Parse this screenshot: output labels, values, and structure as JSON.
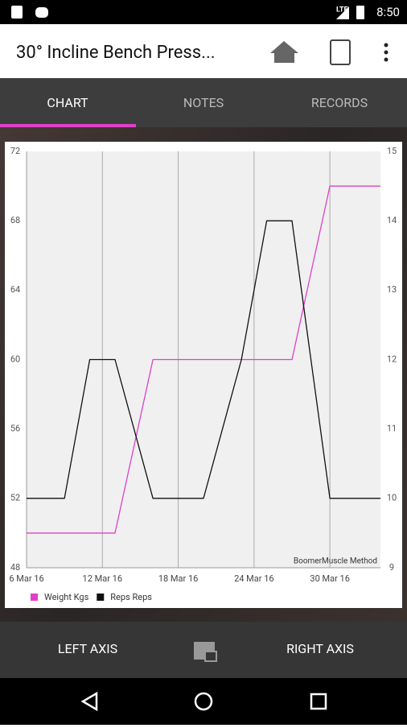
{
  "status_bar": {
    "network": "LTE",
    "time": "8:50"
  },
  "toolbar": {
    "title": "30° Incline Bench Press..."
  },
  "tabs": [
    "CHART",
    "NOTES",
    "RECORDS"
  ],
  "bottom_bar": {
    "left": "LEFT AXIS",
    "right": "RIGHT AXIS"
  },
  "chart_data": {
    "type": "line",
    "watermark": "BoomerMuscle Method",
    "x": [
      "2016-03-06",
      "2016-03-09",
      "2016-03-11",
      "2016-03-13",
      "2016-03-16",
      "2016-03-20",
      "2016-03-23",
      "2016-03-25",
      "2016-03-27",
      "2016-03-30",
      "2016-04-03"
    ],
    "xlim": [
      "2016-03-06",
      "2016-04-03"
    ],
    "xticks": [
      {
        "value": "2016-03-06",
        "label": "6 Mar 16"
      },
      {
        "value": "2016-03-12",
        "label": "12 Mar 16"
      },
      {
        "value": "2016-03-18",
        "label": "18 Mar 16"
      },
      {
        "value": "2016-03-24",
        "label": "24 Mar 16"
      },
      {
        "value": "2016-03-30",
        "label": "30 Mar 16"
      }
    ],
    "ylim": [
      48,
      72
    ],
    "yticks": [
      48,
      52,
      56,
      60,
      64,
      68,
      72
    ],
    "y2lim": [
      9,
      15
    ],
    "y2ticks": [
      9,
      10,
      11,
      12,
      13,
      14,
      15
    ],
    "grid": "x",
    "legend": "bottom-left",
    "series": [
      {
        "name": "Weight Kgs",
        "color": "#e040c8",
        "values": [
          50,
          50,
          50,
          50,
          60,
          60,
          60,
          60,
          60,
          70,
          70
        ]
      },
      {
        "name": "Reps Reps",
        "color": "#111111",
        "axis": "y2",
        "values": [
          10,
          10,
          12,
          12,
          10,
          10,
          12,
          14,
          14,
          10,
          10
        ]
      }
    ]
  }
}
